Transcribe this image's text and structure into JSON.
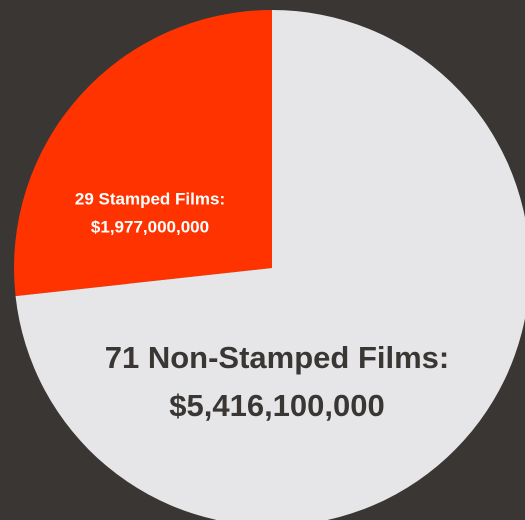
{
  "chart_data": {
    "type": "pie",
    "categories": [
      "29 Stamped Films:",
      "71 Non-Stamped Films:"
    ],
    "values": [
      1977000000,
      5416100000
    ],
    "value_labels": [
      "$1,977,000,000",
      "$5,416,100,000"
    ],
    "colors": [
      "#ff3300",
      "#e6e6e8"
    ]
  }
}
